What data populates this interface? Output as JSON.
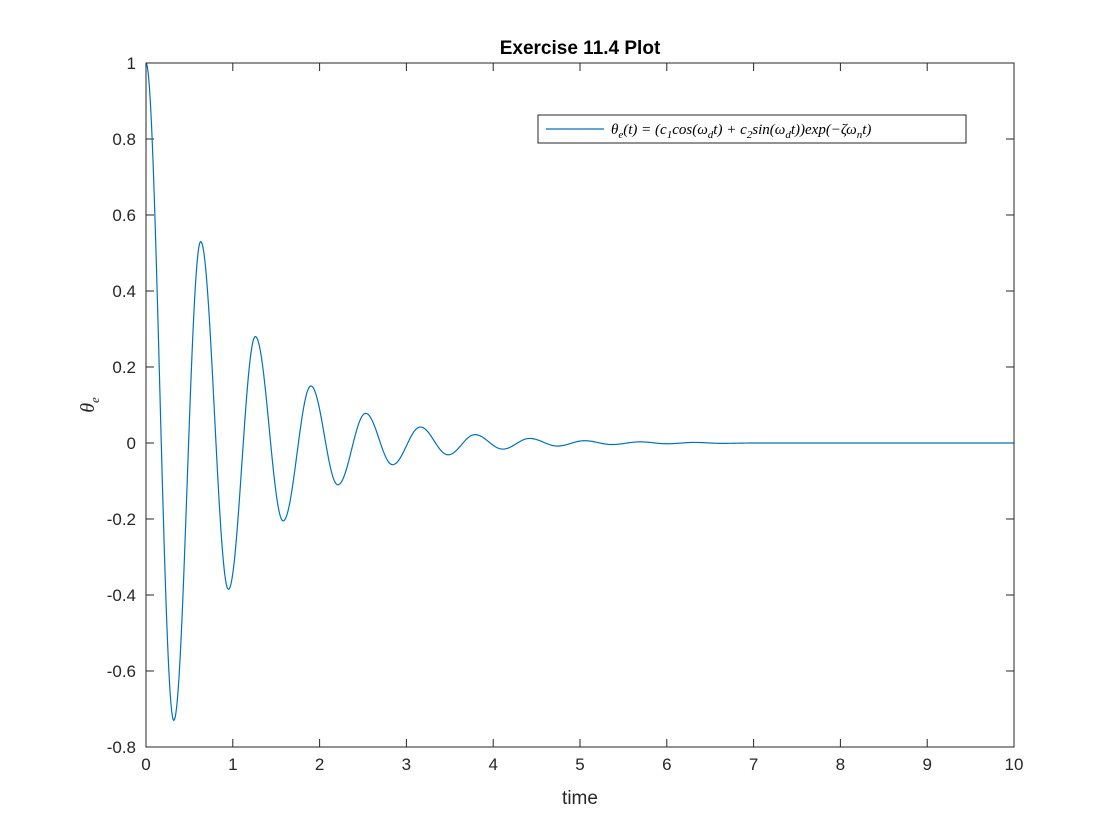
{
  "chart_data": {
    "type": "line",
    "title": "Exercise 11.4 Plot",
    "xlabel": "time",
    "ylabel": "θ_e",
    "xlim": [
      0,
      10
    ],
    "ylim": [
      -0.8,
      1
    ],
    "xticks": [
      0,
      1,
      2,
      3,
      4,
      5,
      6,
      7,
      8,
      9,
      10
    ],
    "yticks": [
      -0.8,
      -0.6,
      -0.4,
      -0.2,
      0,
      0.2,
      0.4,
      0.6,
      0.8,
      1
    ],
    "xtick_labels": [
      "0",
      "1",
      "2",
      "3",
      "4",
      "5",
      "6",
      "7",
      "8",
      "9",
      "10"
    ],
    "ytick_labels": [
      "-0.8",
      "-0.6",
      "-0.4",
      "-0.2",
      "0",
      "0.2",
      "0.4",
      "0.6",
      "0.8",
      "1"
    ],
    "grid": false,
    "legend_position": "top-right",
    "series": [
      {
        "name": "θe(t) = (c1cos(ωdt) + c2sin(ωdt))exp(−ζωnt)",
        "color": "#0072BD",
        "x": [
          0,
          0.32,
          0.63,
          0.95,
          1.26,
          1.58,
          1.9,
          2.21,
          2.53,
          2.84,
          3.16,
          3.48,
          3.79,
          4.11,
          4.42,
          4.74,
          5.05,
          5.37,
          5.69,
          6.0,
          6.32,
          6.63,
          7.0,
          8.0,
          9.0,
          10.0
        ],
        "y": [
          1.0,
          -0.73,
          0.53,
          -0.385,
          0.28,
          -0.205,
          0.15,
          -0.11,
          0.078,
          -0.057,
          0.042,
          -0.031,
          0.022,
          -0.016,
          0.012,
          -0.008,
          0.006,
          -0.004,
          0.003,
          -0.002,
          0.0015,
          -0.001,
          0.0,
          0.0,
          0.0,
          0.0
        ]
      }
    ]
  }
}
